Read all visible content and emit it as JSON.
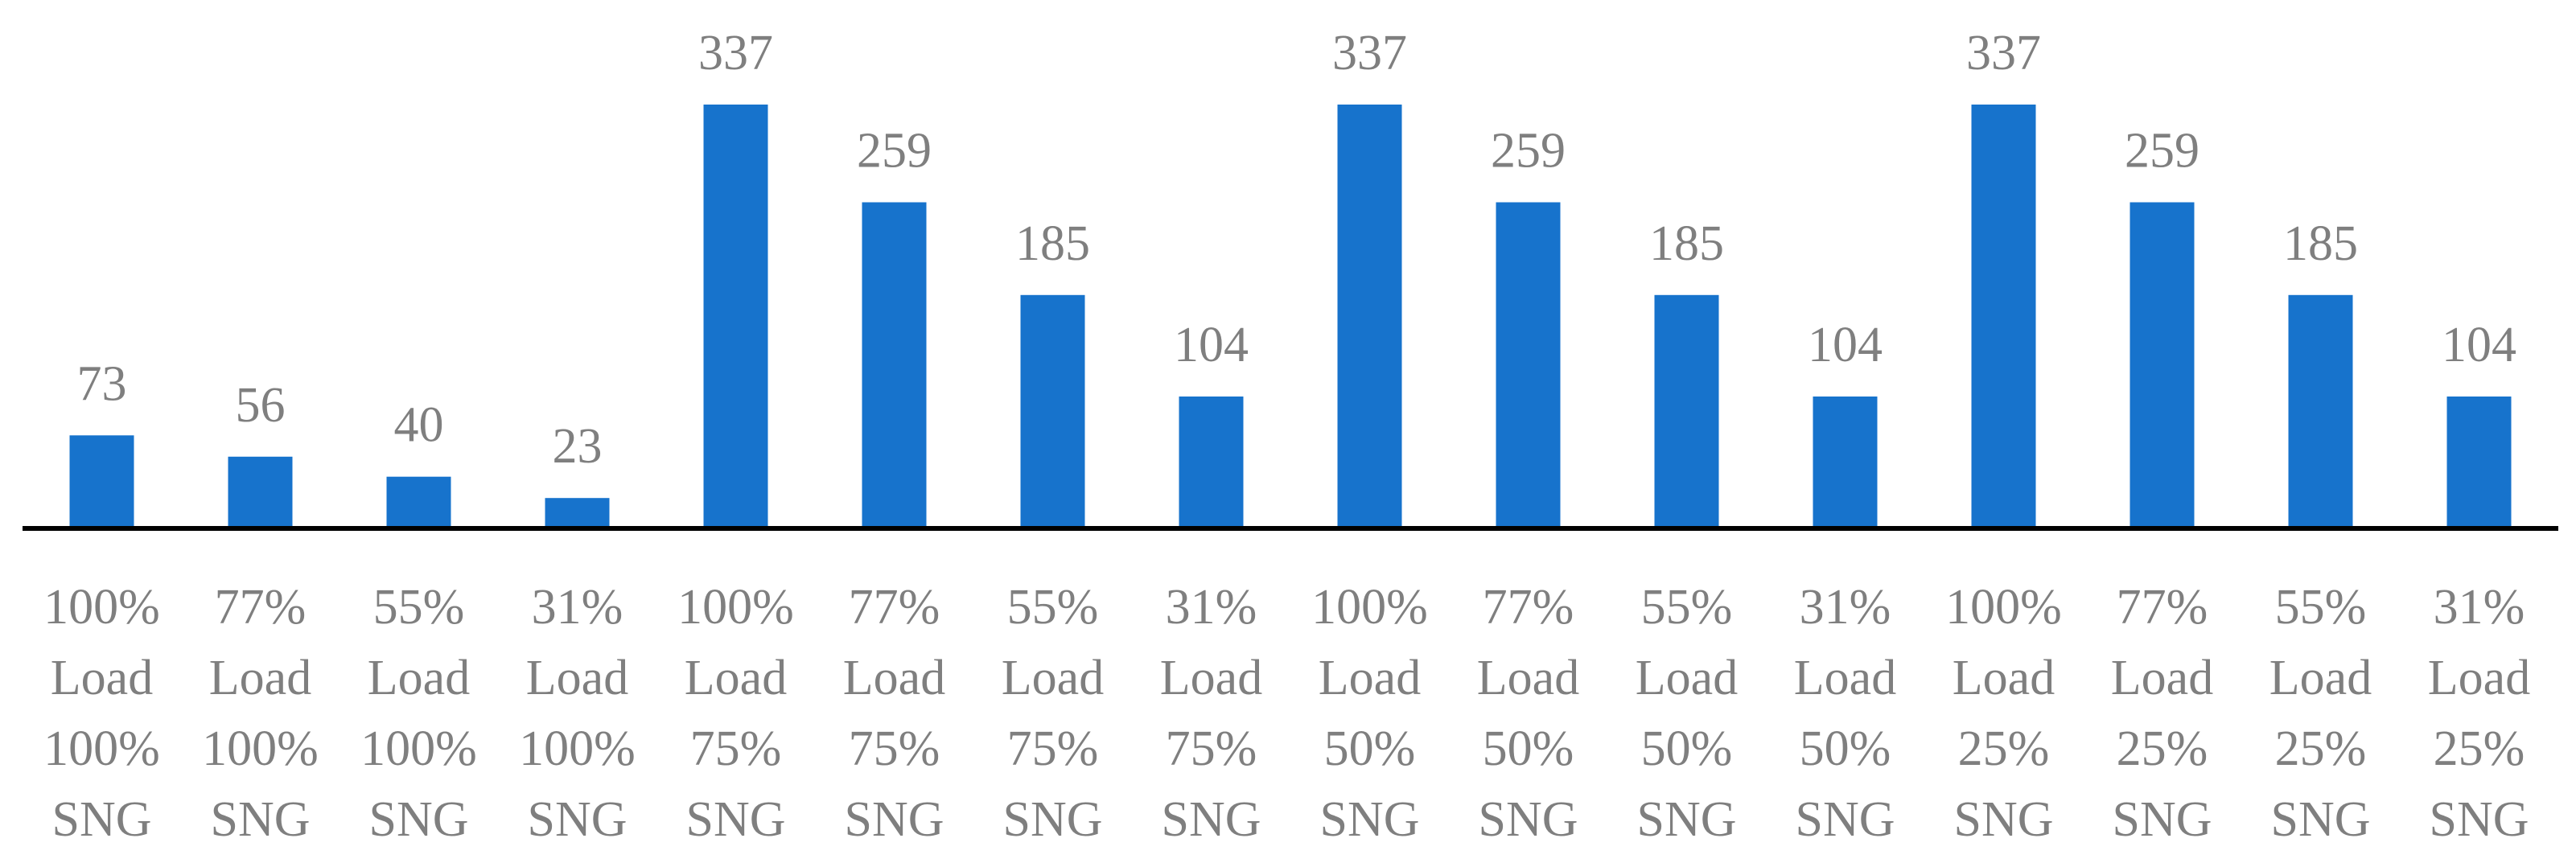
{
  "chart_data": {
    "type": "bar",
    "title": "",
    "xlabel": "",
    "ylabel": "",
    "ylim": [
      0,
      337
    ],
    "grid": false,
    "legend": "none",
    "colors": {
      "bar": "#1773CC",
      "axis": "#000000",
      "label": "#7F7F7F"
    },
    "categories": [
      [
        "100%",
        "Load",
        "100%",
        "SNG"
      ],
      [
        "77%",
        "Load",
        "100%",
        "SNG"
      ],
      [
        "55%",
        "Load",
        "100%",
        "SNG"
      ],
      [
        "31%",
        "Load",
        "100%",
        "SNG"
      ],
      [
        "100%",
        "Load",
        "75%",
        "SNG"
      ],
      [
        "77%",
        "Load",
        "75%",
        "SNG"
      ],
      [
        "55%",
        "Load",
        "75%",
        "SNG"
      ],
      [
        "31%",
        "Load",
        "75%",
        "SNG"
      ],
      [
        "100%",
        "Load",
        "50%",
        "SNG"
      ],
      [
        "77%",
        "Load",
        "50%",
        "SNG"
      ],
      [
        "55%",
        "Load",
        "50%",
        "SNG"
      ],
      [
        "31%",
        "Load",
        "50%",
        "SNG"
      ],
      [
        "100%",
        "Load",
        "25%",
        "SNG"
      ],
      [
        "77%",
        "Load",
        "25%",
        "SNG"
      ],
      [
        "55%",
        "Load",
        "25%",
        "SNG"
      ],
      [
        "31%",
        "Load",
        "25%",
        "SNG"
      ]
    ],
    "values": [
      73,
      56,
      40,
      23,
      337,
      259,
      185,
      104,
      337,
      259,
      185,
      104,
      337,
      259,
      185,
      104
    ]
  }
}
